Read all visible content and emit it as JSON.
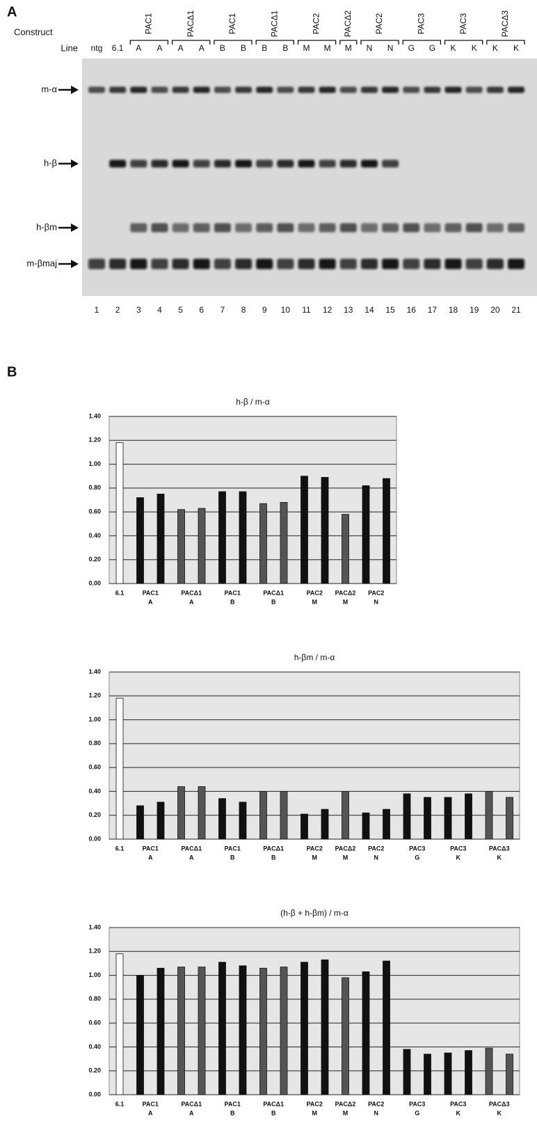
{
  "panel_a": {
    "label": "A",
    "construct_label": "Construct",
    "line_label": "Line",
    "constructs": [
      "PAC1",
      "PACΔ1",
      "PAC1",
      "PACΔ1",
      "PAC2",
      "PACΔ2",
      "PAC2",
      "PAC3",
      "PAC3",
      "PACΔ3"
    ],
    "lines": [
      "ntg",
      "6.1",
      "A",
      "A",
      "A",
      "A",
      "B",
      "B",
      "B",
      "B",
      "M",
      "M",
      "M",
      "N",
      "N",
      "G",
      "G",
      "K",
      "K",
      "K",
      "K"
    ],
    "bands": [
      "m-α",
      "h-β",
      "h-βm",
      "m-βmaj"
    ],
    "lanes": [
      1,
      2,
      3,
      4,
      5,
      6,
      7,
      8,
      9,
      10,
      11,
      12,
      13,
      14,
      15,
      16,
      17,
      18,
      19,
      20,
      21
    ]
  },
  "panel_b_label": "B",
  "chart_data": [
    {
      "type": "bar",
      "title": "h-β / m-α",
      "categories": [
        "6.1",
        "PAC1",
        null,
        "PACΔ1",
        null,
        "PAC1",
        null,
        "PACΔ1",
        null,
        "PAC2",
        null,
        "PACΔ2",
        "PAC2",
        null
      ],
      "sublabels": [
        null,
        "A",
        null,
        "A",
        null,
        "B",
        null,
        "B",
        null,
        "M",
        null,
        "M",
        "N",
        null
      ],
      "values": [
        1.18,
        0.72,
        0.75,
        0.62,
        0.63,
        0.77,
        0.77,
        0.67,
        0.68,
        0.9,
        0.89,
        0.58,
        0.82,
        0.88
      ],
      "colors": [
        "#ffffff",
        "#111111",
        "#111111",
        "#555555",
        "#555555",
        "#111111",
        "#111111",
        "#555555",
        "#555555",
        "#111111",
        "#111111",
        "#555555",
        "#111111",
        "#111111"
      ],
      "ylim": [
        0,
        1.4
      ],
      "yticks": [
        {
          "value": 0,
          "label": "0.00"
        },
        {
          "value": 0.2,
          "label": "0.20"
        },
        {
          "value": 0.4,
          "label": "0.40"
        },
        {
          "value": 0.6,
          "label": "0.60"
        },
        {
          "value": 0.8,
          "label": "0.80"
        },
        {
          "value": 1.0,
          "label": "1.00"
        },
        {
          "value": 1.2,
          "label": "1.20"
        },
        {
          "value": 1.4,
          "label": "1.40"
        }
      ],
      "grid": true
    },
    {
      "type": "bar",
      "title": "h-βm / m-α",
      "categories": [
        "6.1",
        "PAC1",
        null,
        "PACΔ1",
        null,
        "PAC1",
        null,
        "PACΔ1",
        null,
        "PAC2",
        null,
        "PACΔ2",
        "PAC2",
        null,
        "PAC3",
        null,
        "PAC3",
        null,
        "PACΔ3",
        null
      ],
      "sublabels": [
        null,
        "A",
        null,
        "A",
        null,
        "B",
        null,
        "B",
        null,
        "M",
        null,
        "M",
        "N",
        null,
        "G",
        null,
        "K",
        null,
        "K",
        null
      ],
      "values": [
        1.18,
        0.28,
        0.31,
        0.44,
        0.44,
        0.34,
        0.31,
        0.4,
        0.4,
        0.21,
        0.25,
        0.4,
        0.22,
        0.25,
        0.38,
        0.35,
        0.35,
        0.38,
        0.4,
        0.35
      ],
      "colors": [
        "#ffffff",
        "#111111",
        "#111111",
        "#555555",
        "#555555",
        "#111111",
        "#111111",
        "#555555",
        "#555555",
        "#111111",
        "#111111",
        "#555555",
        "#111111",
        "#111111",
        "#111111",
        "#111111",
        "#111111",
        "#111111",
        "#555555",
        "#555555"
      ],
      "ylim": [
        0,
        1.4
      ],
      "yticks": [
        {
          "value": 0,
          "label": "0.00"
        },
        {
          "value": 0.2,
          "label": "0.20"
        },
        {
          "value": 0.4,
          "label": "0.40"
        },
        {
          "value": 0.6,
          "label": "0.60"
        },
        {
          "value": 0.8,
          "label": "0.80"
        },
        {
          "value": 1.0,
          "label": "1.00"
        },
        {
          "value": 1.2,
          "label": "1.20"
        },
        {
          "value": 1.4,
          "label": "1.40"
        }
      ],
      "grid": true
    },
    {
      "type": "bar",
      "title": "(h-β + h-βm) / m-α",
      "categories": [
        "6.1",
        "PAC1",
        null,
        "PACΔ1",
        null,
        "PAC1",
        null,
        "PACΔ1",
        null,
        "PAC2",
        null,
        "PACΔ2",
        "PAC2",
        null,
        "PAC3",
        null,
        "PAC3",
        null,
        "PACΔ3",
        null
      ],
      "sublabels": [
        null,
        "A",
        null,
        "A",
        null,
        "B",
        null,
        "B",
        null,
        "M",
        null,
        "M",
        "N",
        null,
        "G",
        null,
        "K",
        null,
        "K",
        null
      ],
      "values": [
        1.18,
        1.0,
        1.06,
        1.07,
        1.07,
        1.11,
        1.08,
        1.06,
        1.07,
        1.11,
        1.13,
        0.98,
        1.03,
        1.12,
        0.38,
        0.34,
        0.35,
        0.37,
        0.39,
        0.34
      ],
      "colors": [
        "#ffffff",
        "#111111",
        "#111111",
        "#555555",
        "#555555",
        "#111111",
        "#111111",
        "#555555",
        "#555555",
        "#111111",
        "#111111",
        "#555555",
        "#111111",
        "#111111",
        "#111111",
        "#111111",
        "#111111",
        "#111111",
        "#555555",
        "#555555"
      ],
      "ylim": [
        0,
        1.4
      ],
      "yticks": [
        {
          "value": 0,
          "label": "0.00"
        },
        {
          "value": 0.2,
          "label": "0.20"
        },
        {
          "value": 0.4,
          "label": "0.40"
        },
        {
          "value": 0.6,
          "label": "0.60"
        },
        {
          "value": 0.8,
          "label": "0.80"
        },
        {
          "value": 1.0,
          "label": "1.00"
        },
        {
          "value": 1.2,
          "label": "1.20"
        },
        {
          "value": 1.4,
          "label": "1.40"
        }
      ],
      "grid": true
    }
  ]
}
